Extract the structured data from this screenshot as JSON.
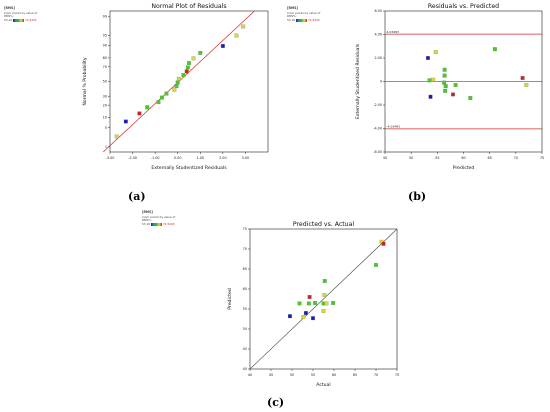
{
  "legend": {
    "header": "[RMS]",
    "line1": "Color points by value of",
    "line2": "RMS%:",
    "low": "53.16",
    "high": "72.5443"
  },
  "colors": {
    "blue": "#1a1ab8",
    "green": "#44cc22",
    "yellow": "#d8d83a",
    "red": "#cc2222",
    "line_red": "#d62828",
    "line_dark": "#555555"
  },
  "labels": {
    "a": "(a)",
    "b": "(b)",
    "c": "(c)"
  },
  "chart_data": [
    {
      "type": "scatter",
      "title": "Normal Plot of Residuals",
      "xlabel": "Externally Studentized Residuals",
      "ylabel": "Normal % Probability",
      "xlim": [
        -3,
        4
      ],
      "xticks": [
        -3,
        -2,
        -1,
        0,
        1,
        2,
        3
      ],
      "xtick_labels": [
        "-3.00",
        "-2.00",
        "-1.00",
        "0.00",
        "1.00",
        "2.00",
        "3.00"
      ],
      "yticks": [
        1,
        5,
        10,
        20,
        30,
        50,
        70,
        80,
        90,
        95,
        99
      ],
      "ytick_labels": [
        "1",
        "5",
        "10",
        "20",
        "30",
        "50",
        "70",
        "80",
        "90",
        "95",
        "99"
      ],
      "fit_line": [
        [
          -3.3,
          0.6
        ],
        [
          3.4,
          99.4
        ]
      ],
      "points": [
        {
          "x": -2.7,
          "y": 2.5,
          "c": "yellow"
        },
        {
          "x": -2.3,
          "y": 7.7,
          "c": "blue"
        },
        {
          "x": -1.7,
          "y": 12.8,
          "c": "red"
        },
        {
          "x": -1.35,
          "y": 17.9,
          "c": "green"
        },
        {
          "x": -0.85,
          "y": 23.1,
          "c": "green"
        },
        {
          "x": -0.7,
          "y": 28.2,
          "c": "green"
        },
        {
          "x": -0.5,
          "y": 33.3,
          "c": "green"
        },
        {
          "x": -0.15,
          "y": 38.5,
          "c": "yellow"
        },
        {
          "x": -0.05,
          "y": 43.6,
          "c": "green"
        },
        {
          "x": 0.0,
          "y": 48.7,
          "c": "green"
        },
        {
          "x": 0.05,
          "y": 53.8,
          "c": "yellow"
        },
        {
          "x": 0.25,
          "y": 59.0,
          "c": "green"
        },
        {
          "x": 0.4,
          "y": 64.1,
          "c": "red"
        },
        {
          "x": 0.45,
          "y": 69.2,
          "c": "green"
        },
        {
          "x": 0.5,
          "y": 74.4,
          "c": "green"
        },
        {
          "x": 0.7,
          "y": 79.5,
          "c": "yellow"
        },
        {
          "x": 1.0,
          "y": 84.6,
          "c": "green"
        },
        {
          "x": 2.0,
          "y": 89.7,
          "c": "blue"
        },
        {
          "x": 2.6,
          "y": 94.9,
          "c": "yellow"
        },
        {
          "x": 2.9,
          "y": 97.5,
          "c": "yellow"
        }
      ]
    },
    {
      "type": "scatter",
      "title": "Residuals vs. Predicted",
      "xlabel": "Predicted",
      "ylabel": "Externally Studentized Residuals",
      "xlim": [
        45,
        75
      ],
      "ylim": [
        -6,
        6
      ],
      "xticks": [
        45,
        50,
        55,
        60,
        65,
        70,
        75
      ],
      "xtick_labels": [
        "45",
        "50",
        "55",
        "60",
        "65",
        "70",
        "75"
      ],
      "yticks": [
        -6,
        -4,
        -2,
        0,
        2,
        4,
        6
      ],
      "ytick_labels": [
        "-6.00",
        "-4.00",
        "-2.00",
        "0",
        "2.00",
        "4.00",
        "6.00"
      ],
      "limit_labels": {
        "upper": "4.03483",
        "lower": "-4.03483"
      },
      "upper_limit": 4.03483,
      "lower_limit": -4.03483,
      "points": [
        {
          "x": 53.2,
          "y": 2.0,
          "c": "blue"
        },
        {
          "x": 53.5,
          "y": 0.1,
          "c": "green"
        },
        {
          "x": 53.7,
          "y": -1.3,
          "c": "blue"
        },
        {
          "x": 54.2,
          "y": 0.15,
          "c": "yellow"
        },
        {
          "x": 54.7,
          "y": 2.5,
          "c": "yellow"
        },
        {
          "x": 56.3,
          "y": -0.1,
          "c": "green"
        },
        {
          "x": 56.4,
          "y": 0.5,
          "c": "green"
        },
        {
          "x": 56.4,
          "y": 1.0,
          "c": "green"
        },
        {
          "x": 56.5,
          "y": -0.8,
          "c": "green"
        },
        {
          "x": 56.6,
          "y": -0.4,
          "c": "green"
        },
        {
          "x": 58.0,
          "y": -1.1,
          "c": "red"
        },
        {
          "x": 58.5,
          "y": -0.3,
          "c": "green"
        },
        {
          "x": 61.3,
          "y": -1.4,
          "c": "green"
        },
        {
          "x": 66.0,
          "y": 2.75,
          "c": "green"
        },
        {
          "x": 71.3,
          "y": 0.3,
          "c": "red"
        },
        {
          "x": 72.0,
          "y": -0.3,
          "c": "yellow"
        }
      ]
    },
    {
      "type": "scatter",
      "title": "Predicted vs. Actual",
      "xlabel": "Actual",
      "ylabel": "Predicted",
      "xlim": [
        40,
        75
      ],
      "ylim": [
        40,
        75
      ],
      "xticks": [
        40,
        45,
        50,
        55,
        60,
        65,
        70,
        75
      ],
      "yticks": [
        40,
        45,
        50,
        55,
        60,
        65,
        70,
        75
      ],
      "xtick_labels": [
        "40",
        "45",
        "50",
        "55",
        "60",
        "65",
        "70",
        "75"
      ],
      "ytick_labels": [
        "40",
        "45",
        "50",
        "55",
        "60",
        "65",
        "70",
        "75"
      ],
      "fit_line": [
        [
          40,
          40
        ],
        [
          75,
          75
        ]
      ],
      "points": [
        {
          "x": 49.5,
          "y": 53.2,
          "c": "blue"
        },
        {
          "x": 51.8,
          "y": 56.4,
          "c": "green"
        },
        {
          "x": 52.7,
          "y": 53.0,
          "c": "yellow"
        },
        {
          "x": 53.3,
          "y": 54.0,
          "c": "blue"
        },
        {
          "x": 54.0,
          "y": 56.4,
          "c": "green"
        },
        {
          "x": 54.2,
          "y": 58.0,
          "c": "red"
        },
        {
          "x": 55.0,
          "y": 52.7,
          "c": "blue"
        },
        {
          "x": 55.5,
          "y": 56.5,
          "c": "green"
        },
        {
          "x": 57.5,
          "y": 56.4,
          "c": "green"
        },
        {
          "x": 57.5,
          "y": 54.5,
          "c": "yellow"
        },
        {
          "x": 57.7,
          "y": 58.5,
          "c": "yellow"
        },
        {
          "x": 57.8,
          "y": 62.0,
          "c": "green"
        },
        {
          "x": 58.2,
          "y": 56.4,
          "c": "yellow"
        },
        {
          "x": 59.8,
          "y": 56.5,
          "c": "green"
        },
        {
          "x": 70.0,
          "y": 66.0,
          "c": "green"
        },
        {
          "x": 71.3,
          "y": 71.8,
          "c": "yellow"
        },
        {
          "x": 71.8,
          "y": 71.3,
          "c": "red"
        }
      ]
    }
  ]
}
